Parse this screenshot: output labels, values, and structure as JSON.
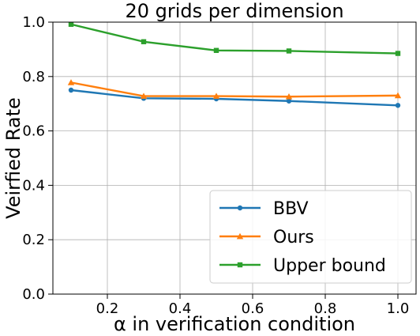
{
  "chart_data": {
    "type": "line",
    "title": "20 grids per dimension",
    "xlabel": "α in verification condition",
    "ylabel": "Veirfied Rate",
    "x": [
      0.1,
      0.3,
      0.5,
      0.7,
      1.0
    ],
    "xlim": [
      0.05,
      1.05
    ],
    "ylim": [
      0.0,
      1.0
    ],
    "xticks": [
      0.2,
      0.4,
      0.6,
      0.8,
      1.0
    ],
    "xtick_labels": [
      "0.2",
      "0.4",
      "0.6",
      "0.8",
      "1.0"
    ],
    "yticks": [
      0.0,
      0.2,
      0.4,
      0.6,
      0.8,
      1.0
    ],
    "ytick_labels": [
      "0.0",
      "0.2",
      "0.4",
      "0.6",
      "0.8",
      "1.0"
    ],
    "grid": true,
    "legend_position": "lower-right",
    "series": [
      {
        "name": "BBV",
        "color": "#1f77b4",
        "marker": "circle",
        "values": [
          0.75,
          0.72,
          0.718,
          0.71,
          0.694
        ]
      },
      {
        "name": "Ours",
        "color": "#ff7f0e",
        "marker": "triangle",
        "values": [
          0.778,
          0.728,
          0.728,
          0.726,
          0.73
        ]
      },
      {
        "name": "Upper bound",
        "color": "#2ca02c",
        "marker": "square",
        "values": [
          0.992,
          0.928,
          0.896,
          0.894,
          0.885
        ]
      }
    ]
  }
}
